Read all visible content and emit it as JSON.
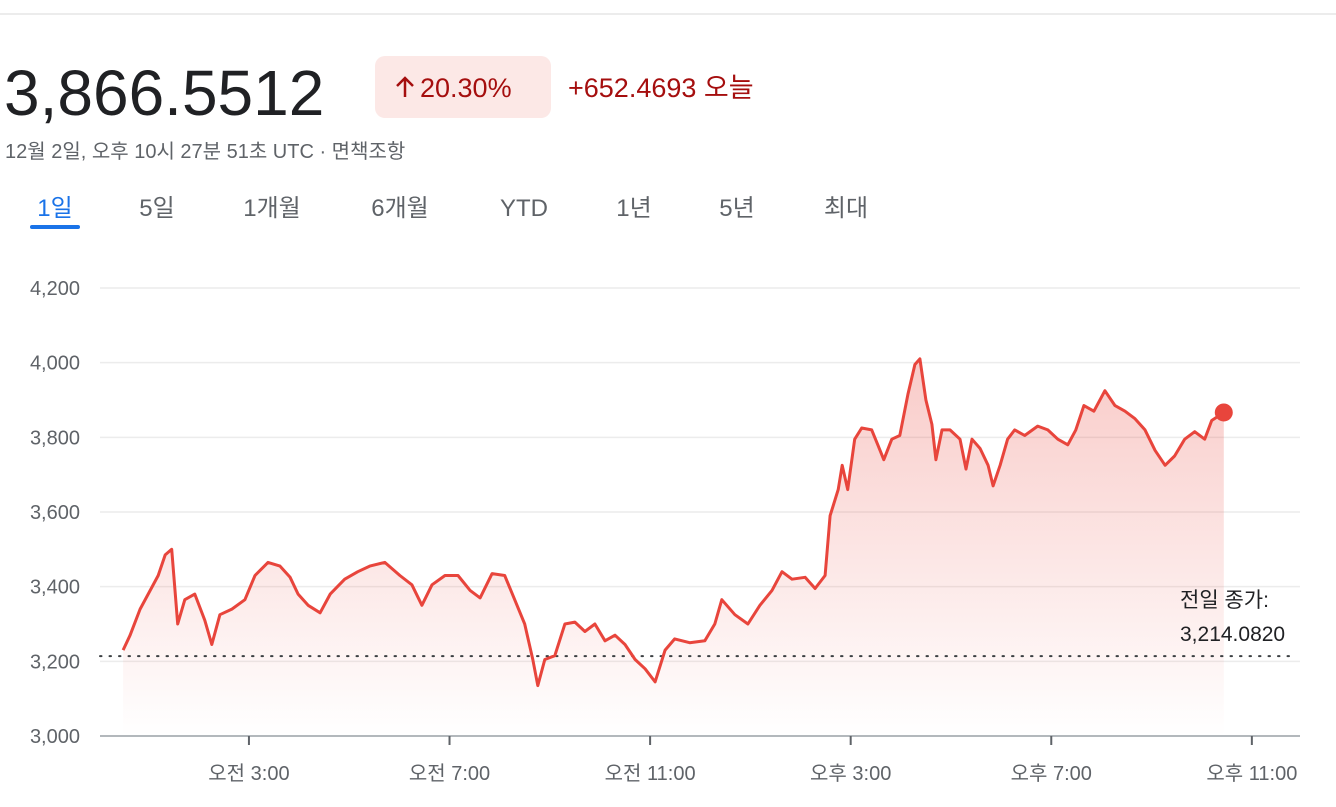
{
  "header": {
    "price": "3,866.5512",
    "change_percent": "20.30%",
    "change_value": "+652.4693",
    "change_period": "오늘",
    "timestamp": "12월 2일, 오후 10시 27분 51초 UTC · 면책조항"
  },
  "tabs": [
    "1일",
    "5일",
    "1개월",
    "6개월",
    "YTD",
    "1년",
    "5년",
    "최대"
  ],
  "active_tab": 0,
  "chart_data": {
    "type": "line",
    "color": "#e8453c",
    "grid": true,
    "x": [
      0.49,
      0.63,
      0.83,
      1.03,
      1.19,
      1.33,
      1.46,
      1.58,
      1.72,
      1.92,
      2.12,
      2.26,
      2.42,
      2.66,
      2.92,
      3.12,
      3.38,
      3.62,
      3.82,
      3.98,
      4.18,
      4.42,
      4.62,
      4.91,
      5.17,
      5.41,
      5.71,
      6.01,
      6.25,
      6.45,
      6.65,
      6.91,
      7.17,
      7.41,
      7.61,
      7.85,
      8.1,
      8.3,
      8.5,
      8.66,
      8.76,
      8.9,
      9.1,
      9.3,
      9.5,
      9.7,
      9.9,
      10.1,
      10.3,
      10.5,
      10.7,
      10.9,
      11.1,
      11.3,
      11.49,
      11.79,
      12.09,
      12.29,
      12.43,
      12.69,
      12.95,
      13.19,
      13.43,
      13.63,
      13.83,
      14.09,
      14.29,
      14.49,
      14.59,
      14.75,
      14.83,
      14.94,
      15.08,
      15.22,
      15.42,
      15.54,
      15.66,
      15.82,
      15.98,
      16.14,
      16.28,
      16.38,
      16.5,
      16.62,
      16.7,
      16.82,
      16.98,
      17.18,
      17.3,
      17.42,
      17.58,
      17.74,
      17.84,
      17.98,
      18.13,
      18.27,
      18.47,
      18.73,
      18.93,
      19.13,
      19.33,
      19.49,
      19.65,
      19.85,
      20.07,
      20.27,
      20.47,
      20.67,
      20.87,
      21.07,
      21.27,
      21.46,
      21.66,
      21.86,
      22.06,
      22.2,
      22.44
    ],
    "values": [
      3230,
      3270,
      3340,
      3390,
      3430,
      3485,
      3500,
      3300,
      3365,
      3380,
      3310,
      3245,
      3325,
      3340,
      3365,
      3430,
      3465,
      3455,
      3425,
      3380,
      3350,
      3330,
      3380,
      3420,
      3440,
      3455,
      3465,
      3430,
      3405,
      3350,
      3405,
      3430,
      3430,
      3390,
      3370,
      3435,
      3430,
      3365,
      3300,
      3205,
      3135,
      3205,
      3215,
      3300,
      3305,
      3280,
      3300,
      3255,
      3270,
      3245,
      3205,
      3180,
      3145,
      3230,
      3260,
      3250,
      3255,
      3300,
      3365,
      3325,
      3300,
      3350,
      3390,
      3440,
      3420,
      3425,
      3395,
      3430,
      3590,
      3660,
      3725,
      3660,
      3795,
      3825,
      3820,
      3780,
      3740,
      3795,
      3805,
      3915,
      3995,
      4010,
      3900,
      3835,
      3740,
      3820,
      3820,
      3795,
      3715,
      3795,
      3770,
      3725,
      3670,
      3725,
      3795,
      3820,
      3805,
      3830,
      3820,
      3795,
      3780,
      3820,
      3885,
      3870,
      3925,
      3885,
      3870,
      3850,
      3820,
      3765,
      3725,
      3750,
      3795,
      3815,
      3795,
      3845,
      3866.5512
    ],
    "xlim": [
      0,
      24
    ],
    "xticks": [
      {
        "value": 3,
        "label": "오전 3:00"
      },
      {
        "value": 7,
        "label": "오전 7:00"
      },
      {
        "value": 11,
        "label": "오전 11:00"
      },
      {
        "value": 15,
        "label": "오후 3:00"
      },
      {
        "value": 19,
        "label": "오후 7:00"
      },
      {
        "value": 23,
        "label": "오후 11:00"
      }
    ],
    "ylim": [
      3000,
      4200
    ],
    "yticks": [
      {
        "value": 3000,
        "label": "3,000"
      },
      {
        "value": 3200,
        "label": "3,200"
      },
      {
        "value": 3400,
        "label": "3,400"
      },
      {
        "value": 3600,
        "label": "3,600"
      },
      {
        "value": 3800,
        "label": "3,800"
      },
      {
        "value": 4000,
        "label": "4,000"
      },
      {
        "value": 4200,
        "label": "4,200"
      }
    ],
    "previous_close": {
      "label": "전일 종가:",
      "value": 3214.082,
      "value_label": "3,214.0820"
    }
  }
}
